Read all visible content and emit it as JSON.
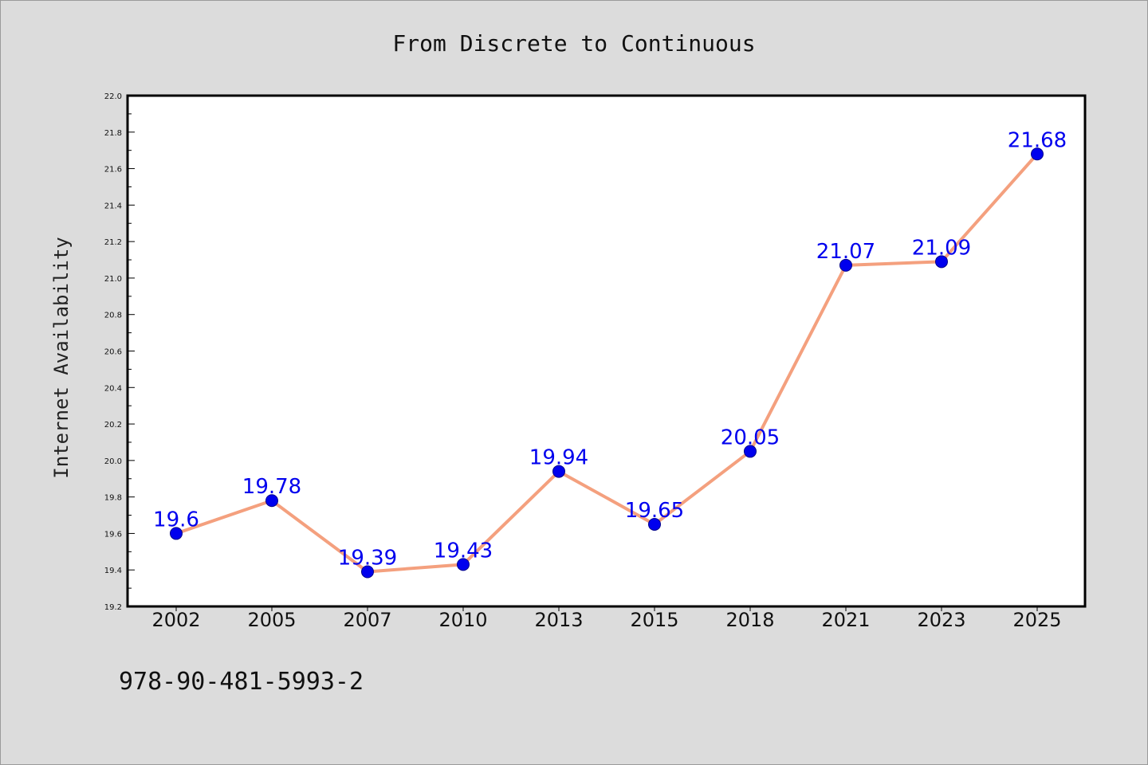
{
  "figure": {
    "footer_code": "978-90-481-5993-2",
    "background": "#dcdcdc"
  },
  "chart_data": {
    "type": "line",
    "title": "From Discrete to Continuous",
    "xlabel": "",
    "ylabel": "Internet Availability",
    "categories": [
      "2002",
      "2005",
      "2007",
      "2010",
      "2013",
      "2015",
      "2018",
      "2021",
      "2023",
      "2025"
    ],
    "series": [
      {
        "values": [
          19.6,
          19.78,
          19.39,
          19.43,
          19.94,
          19.65,
          20.05,
          21.07,
          21.09,
          21.68
        ],
        "labels": [
          "19.6",
          "19.78",
          "19.39",
          "19.43",
          "19.94",
          "19.65",
          "20.05",
          "21.07",
          "21.09",
          "21.68"
        ],
        "line_color": "#f4a07e",
        "marker_color": "#0000ee",
        "label_color": "#0000ee"
      }
    ],
    "ylim": [
      19.2,
      22.0
    ],
    "yticks": [
      "19.2",
      "19.4",
      "19.6",
      "19.8",
      "20.0",
      "20.2",
      "20.4",
      "20.6",
      "20.8",
      "21.0",
      "21.2",
      "21.4",
      "21.6",
      "21.8",
      "22.0"
    ],
    "grid": false,
    "legend": "none"
  }
}
